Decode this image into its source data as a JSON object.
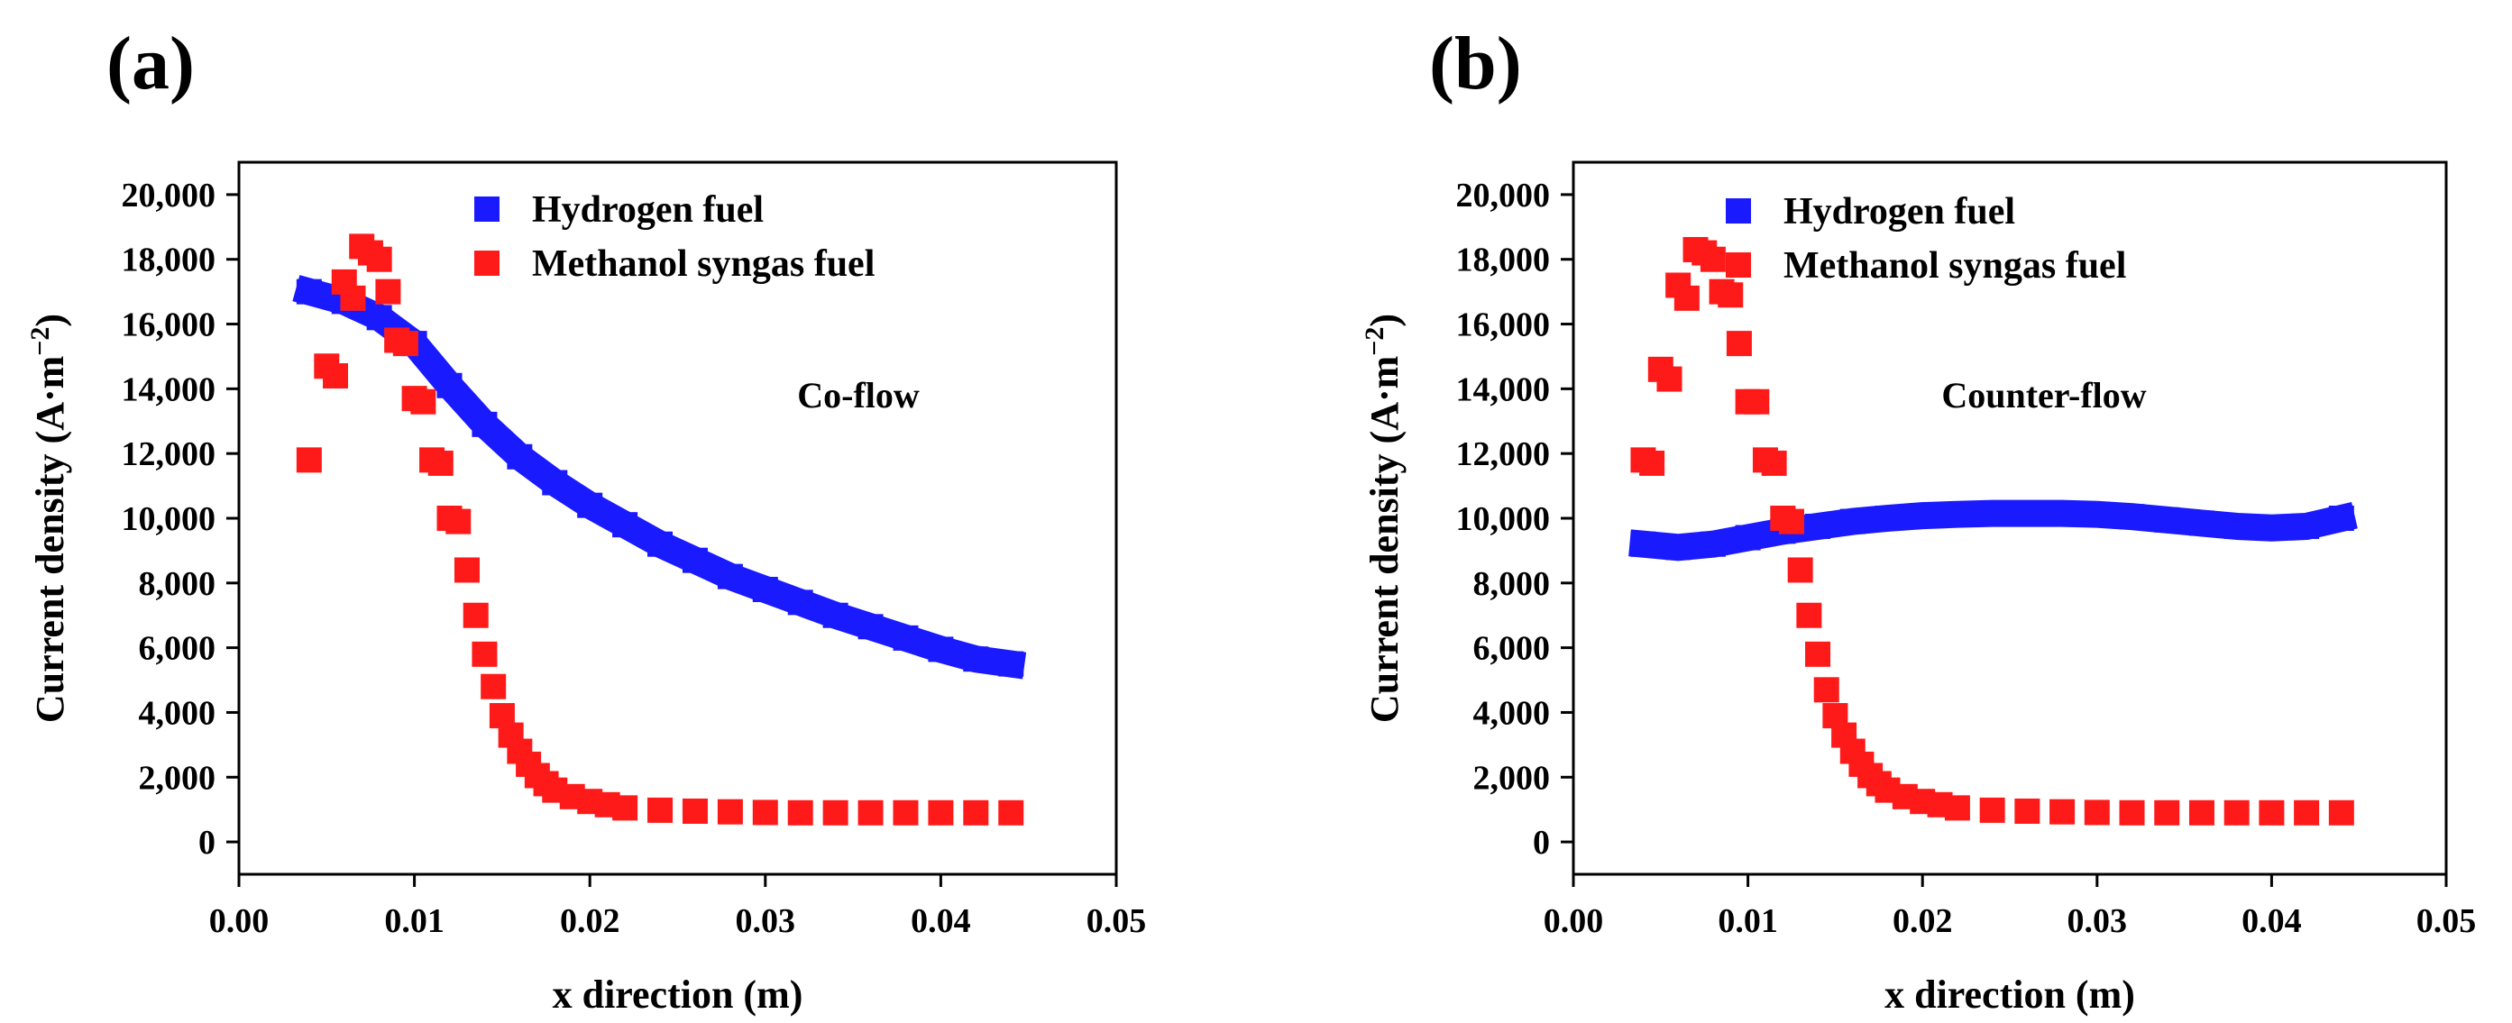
{
  "figure": {
    "panels": [
      "(a)",
      "(b)"
    ]
  },
  "chart_data": [
    {
      "type": "scatter",
      "panel_label": "(a)",
      "annotation": "Co-flow",
      "xlabel": "x direction (m)",
      "ylabel": "Current density (A·m−2)",
      "ylabel_main": "Current density (A·m",
      "ylabel_sup": "−2",
      "ylabel_close": ")",
      "xlim": [
        0,
        0.05
      ],
      "ylim": [
        -1000,
        21000
      ],
      "xticks": [
        0,
        0.01,
        0.02,
        0.03,
        0.04,
        0.05
      ],
      "xtick_labels": [
        "0.00",
        "0.01",
        "0.02",
        "0.03",
        "0.04",
        "0.05"
      ],
      "yticks": [
        0,
        2000,
        4000,
        6000,
        8000,
        10000,
        12000,
        14000,
        16000,
        18000,
        20000
      ],
      "ytick_labels": [
        "0",
        "2,000",
        "4,000",
        "6,000",
        "8,000",
        "10,000",
        "12,000",
        "14,000",
        "16,000",
        "18,000",
        "20,000"
      ],
      "legend_position": "top-center",
      "series": [
        {
          "name": "Hydrogen fuel",
          "color": "#1a1aff",
          "x": [
            0.004,
            0.006,
            0.008,
            0.01,
            0.012,
            0.014,
            0.016,
            0.018,
            0.02,
            0.022,
            0.024,
            0.026,
            0.028,
            0.03,
            0.032,
            0.034,
            0.036,
            0.038,
            0.04,
            0.042,
            0.044
          ],
          "y": [
            17000,
            16700,
            16200,
            15400,
            14100,
            12900,
            11900,
            11100,
            10400,
            9800,
            9200,
            8700,
            8200,
            7800,
            7400,
            7000,
            6650,
            6300,
            5950,
            5650,
            5500
          ]
        },
        {
          "name": "Methanol syngas fuel",
          "color": "#ff1a1a",
          "x": [
            0.004,
            0.005,
            0.0055,
            0.006,
            0.0065,
            0.007,
            0.0075,
            0.008,
            0.0085,
            0.009,
            0.0095,
            0.01,
            0.0105,
            0.011,
            0.0115,
            0.012,
            0.0125,
            0.013,
            0.0135,
            0.014,
            0.0145,
            0.015,
            0.0155,
            0.016,
            0.0165,
            0.017,
            0.0175,
            0.018,
            0.019,
            0.02,
            0.021,
            0.022,
            0.024,
            0.026,
            0.028,
            0.03,
            0.032,
            0.034,
            0.036,
            0.038,
            0.04,
            0.042,
            0.044
          ],
          "y": [
            11800,
            14700,
            14400,
            17300,
            16800,
            18400,
            18200,
            18000,
            17000,
            15500,
            15400,
            13700,
            13600,
            11800,
            11700,
            10000,
            9900,
            8400,
            7000,
            5800,
            4800,
            3900,
            3300,
            2800,
            2400,
            2050,
            1800,
            1600,
            1400,
            1250,
            1150,
            1050,
            980,
            950,
            930,
            910,
            900,
            900,
            900,
            900,
            900,
            900,
            900
          ]
        }
      ]
    },
    {
      "type": "scatter",
      "panel_label": "(b)",
      "annotation": "Counter-flow",
      "xlabel": "x direction (m)",
      "ylabel": "Current density (A·m−2)",
      "ylabel_main": "Current density (A·m",
      "ylabel_sup": "−2",
      "ylabel_close": ")",
      "xlim": [
        0,
        0.05
      ],
      "ylim": [
        -1000,
        21000
      ],
      "xticks": [
        0,
        0.01,
        0.02,
        0.03,
        0.04,
        0.05
      ],
      "xtick_labels": [
        "0.00",
        "0.01",
        "0.02",
        "0.03",
        "0.04",
        "0.05"
      ],
      "yticks": [
        0,
        2000,
        4000,
        6000,
        8000,
        10000,
        12000,
        14000,
        16000,
        18000,
        20000
      ],
      "ytick_labels": [
        "0",
        "2,000",
        "4,000",
        "6,000",
        "8,000",
        "10,000",
        "12,000",
        "14,000",
        "16,000",
        "18,000",
        "20,000"
      ],
      "legend_position": "top-center",
      "series": [
        {
          "name": "Hydrogen fuel",
          "color": "#1a1aff",
          "x": [
            0.004,
            0.006,
            0.008,
            0.01,
            0.012,
            0.014,
            0.016,
            0.018,
            0.02,
            0.022,
            0.024,
            0.026,
            0.028,
            0.03,
            0.032,
            0.034,
            0.036,
            0.038,
            0.04,
            0.042,
            0.044
          ],
          "y": [
            9200,
            9100,
            9200,
            9400,
            9600,
            9750,
            9900,
            10000,
            10080,
            10120,
            10150,
            10150,
            10150,
            10120,
            10050,
            9950,
            9850,
            9750,
            9700,
            9750,
            10000
          ]
        },
        {
          "name": "Methanol syngas fuel",
          "color": "#ff1a1a",
          "x": [
            0.004,
            0.0045,
            0.005,
            0.0055,
            0.006,
            0.0065,
            0.007,
            0.0075,
            0.008,
            0.0085,
            0.009,
            0.0095,
            0.01,
            0.0105,
            0.011,
            0.0115,
            0.012,
            0.0125,
            0.013,
            0.0135,
            0.014,
            0.0145,
            0.015,
            0.0155,
            0.016,
            0.0165,
            0.017,
            0.0175,
            0.018,
            0.019,
            0.02,
            0.021,
            0.022,
            0.024,
            0.026,
            0.028,
            0.03,
            0.032,
            0.034,
            0.036,
            0.038,
            0.04,
            0.042,
            0.044
          ],
          "y": [
            11800,
            11700,
            14600,
            14300,
            17200,
            16800,
            18300,
            18200,
            18000,
            17000,
            16900,
            15400,
            13600,
            13600,
            11800,
            11700,
            10000,
            9900,
            8400,
            7000,
            5800,
            4700,
            3900,
            3300,
            2800,
            2400,
            2050,
            1800,
            1600,
            1400,
            1250,
            1150,
            1050,
            980,
            950,
            930,
            910,
            900,
            900,
            900,
            900,
            900,
            900,
            900
          ]
        }
      ]
    }
  ]
}
